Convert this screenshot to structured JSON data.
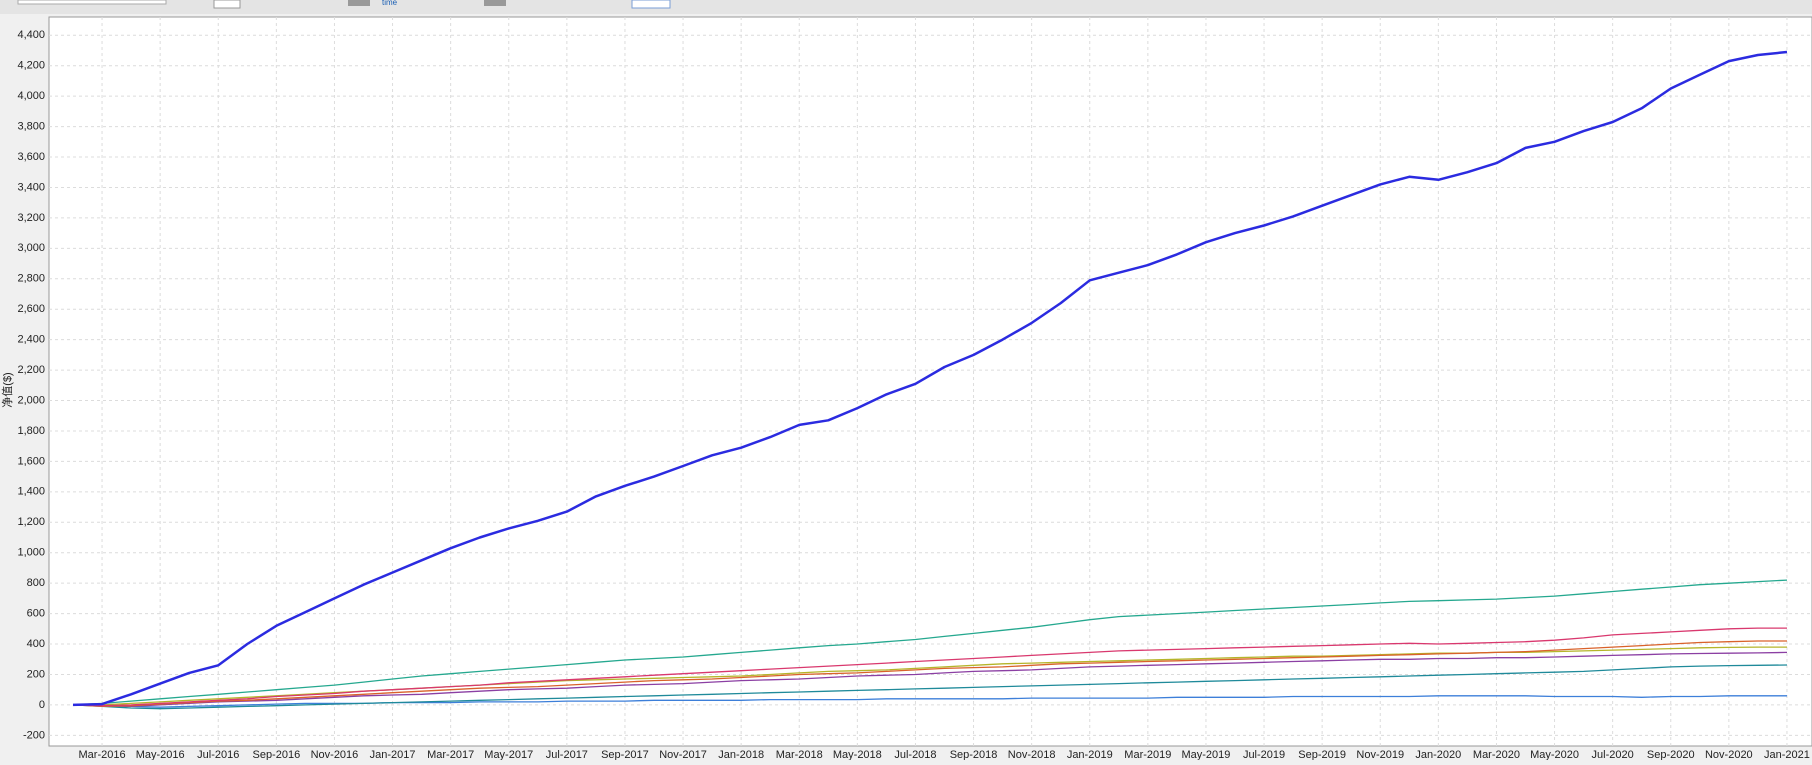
{
  "toolbar_text": "time",
  "chart_data": {
    "type": "line",
    "y_label": "净值($)",
    "categories": [
      null,
      "Mar-2016",
      null,
      "May-2016",
      null,
      "Jul-2016",
      null,
      "Sep-2016",
      null,
      "Nov-2016",
      null,
      "Jan-2017",
      null,
      "Mar-2017",
      null,
      "May-2017",
      null,
      "Jul-2017",
      null,
      "Sep-2017",
      null,
      "Nov-2017",
      null,
      "Jan-2018",
      null,
      "Mar-2018",
      null,
      "May-2018",
      null,
      "Jul-2018",
      null,
      "Sep-2018",
      null,
      "Nov-2018",
      null,
      "Jan-2019",
      null,
      "Mar-2019",
      null,
      "May-2019",
      null,
      "Jul-2019",
      null,
      "Sep-2019",
      null,
      "Nov-2019",
      null,
      "Jan-2020",
      null,
      "Mar-2020",
      null,
      "May-2020",
      null,
      "Jul-2020",
      null,
      "Sep-2020",
      null,
      "Nov-2020",
      null,
      "Jan-2021"
    ],
    "ylim": [
      -270,
      4520
    ],
    "yticks": [
      -200,
      0,
      200,
      400,
      600,
      800,
      {
        "value": 1000,
        "label": "1,000"
      },
      {
        "value": 1200,
        "label": "1,200"
      },
      {
        "value": 1400,
        "label": "1,400"
      },
      {
        "value": 1600,
        "label": "1,600"
      },
      {
        "value": 1800,
        "label": "1,800"
      },
      {
        "value": 2000,
        "label": "2,000"
      },
      {
        "value": 2200,
        "label": "2,200"
      },
      {
        "value": 2400,
        "label": "2,400"
      },
      {
        "value": 2600,
        "label": "2,600"
      },
      {
        "value": 2800,
        "label": "2,800"
      },
      {
        "value": 3000,
        "label": "3,000"
      },
      {
        "value": 3200,
        "label": "3,200"
      },
      {
        "value": 3400,
        "label": "3,400"
      },
      {
        "value": 3600,
        "label": "3,600"
      },
      {
        "value": 3800,
        "label": "3,800"
      },
      {
        "value": 4000,
        "label": "4,000"
      },
      {
        "value": 4200,
        "label": "4,200"
      },
      {
        "value": 4400,
        "label": "4,400"
      }
    ],
    "grid": true,
    "series": [
      {
        "color": "#3d7fd9",
        "values": [
          0,
          -5,
          -10,
          -15,
          -10,
          -5,
          0,
          5,
          10,
          10,
          10,
          15,
          15,
          15,
          20,
          20,
          20,
          25,
          25,
          25,
          30,
          30,
          30,
          30,
          35,
          35,
          35,
          35,
          40,
          40,
          40,
          40,
          40,
          45,
          45,
          45,
          45,
          45,
          50,
          50,
          50,
          50,
          55,
          55,
          55,
          55,
          55,
          60,
          60,
          60,
          60,
          55,
          55,
          55,
          50,
          55,
          55,
          60,
          60,
          60
        ]
      },
      {
        "color": "#1f8a9a",
        "values": [
          0,
          -10,
          -20,
          -25,
          -20,
          -15,
          -10,
          -5,
          0,
          5,
          10,
          15,
          20,
          25,
          30,
          35,
          40,
          45,
          50,
          55,
          60,
          65,
          70,
          75,
          80,
          85,
          90,
          95,
          100,
          105,
          110,
          115,
          120,
          125,
          130,
          135,
          140,
          145,
          150,
          155,
          160,
          165,
          170,
          175,
          180,
          185,
          190,
          195,
          200,
          205,
          210,
          215,
          220,
          230,
          240,
          250,
          255,
          258,
          260,
          262
        ]
      },
      {
        "color": "#8b3fa3",
        "values": [
          0,
          -5,
          -10,
          0,
          10,
          20,
          25,
          30,
          40,
          50,
          60,
          65,
          70,
          80,
          90,
          100,
          105,
          110,
          120,
          130,
          135,
          140,
          150,
          160,
          165,
          170,
          180,
          190,
          195,
          200,
          210,
          220,
          225,
          230,
          240,
          250,
          255,
          260,
          265,
          270,
          275,
          280,
          285,
          290,
          295,
          300,
          300,
          305,
          305,
          310,
          310,
          315,
          320,
          325,
          330,
          335,
          338,
          340,
          342,
          345
        ]
      },
      {
        "color": "#b5b52a",
        "values": [
          0,
          0,
          10,
          20,
          30,
          40,
          50,
          60,
          70,
          80,
          90,
          100,
          110,
          120,
          130,
          140,
          150,
          160,
          165,
          170,
          175,
          180,
          185,
          190,
          200,
          210,
          220,
          225,
          230,
          240,
          250,
          260,
          270,
          275,
          280,
          285,
          290,
          295,
          300,
          305,
          310,
          315,
          320,
          320,
          325,
          330,
          335,
          340,
          340,
          345,
          345,
          350,
          355,
          360,
          365,
          370,
          375,
          378,
          380,
          380
        ]
      },
      {
        "color": "#d9622b",
        "values": [
          0,
          -10,
          -5,
          5,
          15,
          25,
          30,
          40,
          50,
          60,
          70,
          80,
          90,
          100,
          110,
          115,
          120,
          130,
          140,
          150,
          160,
          165,
          170,
          180,
          190,
          200,
          205,
          210,
          220,
          230,
          240,
          245,
          250,
          260,
          270,
          275,
          280,
          285,
          290,
          295,
          300,
          305,
          310,
          315,
          320,
          325,
          330,
          335,
          340,
          345,
          350,
          360,
          370,
          380,
          390,
          400,
          410,
          415,
          420,
          420
        ]
      },
      {
        "color": "#d9386e",
        "values": [
          0,
          -5,
          0,
          10,
          20,
          30,
          40,
          55,
          65,
          75,
          90,
          100,
          110,
          120,
          130,
          145,
          155,
          165,
          175,
          185,
          195,
          205,
          215,
          225,
          235,
          245,
          255,
          265,
          275,
          285,
          295,
          305,
          315,
          325,
          335,
          345,
          355,
          360,
          365,
          370,
          375,
          380,
          385,
          390,
          395,
          400,
          405,
          400,
          405,
          410,
          415,
          425,
          440,
          460,
          470,
          480,
          490,
          500,
          505,
          505
        ]
      },
      {
        "color": "#25a88f",
        "values": [
          0,
          10,
          25,
          40,
          55,
          70,
          85,
          100,
          115,
          130,
          150,
          170,
          190,
          205,
          220,
          235,
          250,
          265,
          280,
          295,
          305,
          315,
          330,
          345,
          360,
          375,
          390,
          400,
          415,
          430,
          450,
          470,
          490,
          510,
          535,
          560,
          580,
          590,
          600,
          610,
          620,
          630,
          640,
          650,
          660,
          670,
          680,
          685,
          690,
          695,
          705,
          715,
          730,
          745,
          760,
          775,
          790,
          800,
          810,
          820
        ]
      },
      {
        "color": "#2b2be0",
        "values": [
          0,
          5,
          70,
          140,
          210,
          260,
          400,
          520,
          610,
          700,
          790,
          870,
          950,
          1030,
          1100,
          1160,
          1210,
          1270,
          1370,
          1440,
          1500,
          1570,
          1640,
          1690,
          1760,
          1840,
          1870,
          1950,
          2040,
          2110,
          2220,
          2300,
          2400,
          2510,
          2640,
          2790,
          2840,
          2890,
          2960,
          3040,
          3100,
          3150,
          3210,
          3280,
          3350,
          3420,
          3470,
          3450,
          3500,
          3560,
          3660,
          3700,
          3770,
          3830,
          3920,
          4050,
          4140,
          4230,
          4270,
          4290
        ]
      }
    ]
  }
}
